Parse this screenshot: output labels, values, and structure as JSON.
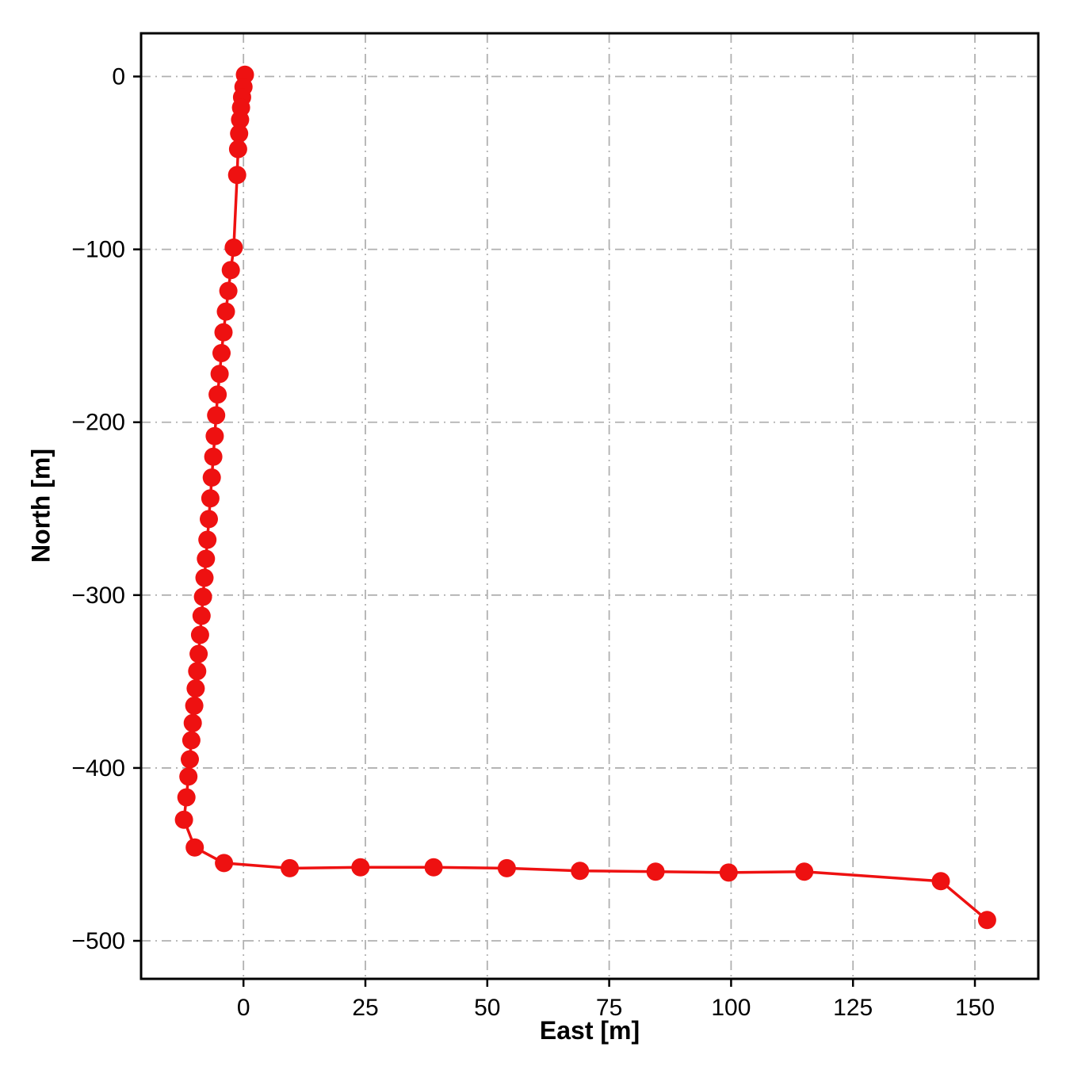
{
  "chart_data": {
    "type": "line",
    "title": "",
    "xlabel": "East [m]",
    "ylabel": "North [m]",
    "xlim": [
      -21,
      163
    ],
    "ylim": [
      -522,
      25
    ],
    "x_ticks": [
      0,
      25,
      50,
      75,
      100,
      125,
      150
    ],
    "y_ticks": [
      0,
      -100,
      -200,
      -300,
      -400,
      -500
    ],
    "grid": true,
    "grid_style": "dash-dot",
    "legend": "none",
    "colors": {
      "line": "#ee1111",
      "marker": "#ee1111",
      "grid": "#b0b0b0",
      "axis": "#000000",
      "background": "#ffffff"
    },
    "series": [
      {
        "name": "trajectory",
        "points": [
          [
            0.3,
            1
          ],
          [
            0,
            -6
          ],
          [
            -0.3,
            -12
          ],
          [
            -0.5,
            -18
          ],
          [
            -0.7,
            -25
          ],
          [
            -0.9,
            -33
          ],
          [
            -1.1,
            -42
          ],
          [
            -1.3,
            -57
          ],
          [
            -2,
            -99
          ],
          [
            -2.6,
            -112
          ],
          [
            -3.1,
            -124
          ],
          [
            -3.6,
            -136
          ],
          [
            -4.1,
            -148
          ],
          [
            -4.5,
            -160
          ],
          [
            -4.9,
            -172
          ],
          [
            -5.3,
            -184
          ],
          [
            -5.6,
            -196
          ],
          [
            -5.9,
            -208
          ],
          [
            -6.2,
            -220
          ],
          [
            -6.5,
            -232
          ],
          [
            -6.8,
            -244
          ],
          [
            -7.1,
            -256
          ],
          [
            -7.4,
            -268
          ],
          [
            -7.7,
            -279
          ],
          [
            -8,
            -290
          ],
          [
            -8.3,
            -301
          ],
          [
            -8.6,
            -312
          ],
          [
            -8.9,
            -323
          ],
          [
            -9.2,
            -334
          ],
          [
            -9.5,
            -344
          ],
          [
            -9.8,
            -354
          ],
          [
            -10.1,
            -364
          ],
          [
            -10.4,
            -374
          ],
          [
            -10.7,
            -384
          ],
          [
            -11,
            -395
          ],
          [
            -11.3,
            -405
          ],
          [
            -11.7,
            -417
          ],
          [
            -12.2,
            -430
          ],
          [
            -10,
            -446
          ],
          [
            -4,
            -455
          ],
          [
            9.5,
            -458
          ],
          [
            24,
            -457.5
          ],
          [
            39,
            -457.5
          ],
          [
            54,
            -458
          ],
          [
            69,
            -459.5
          ],
          [
            84.5,
            -460
          ],
          [
            99.5,
            -460.5
          ],
          [
            115,
            -460
          ],
          [
            143,
            -465.5
          ],
          [
            152.5,
            -488
          ]
        ]
      }
    ]
  }
}
